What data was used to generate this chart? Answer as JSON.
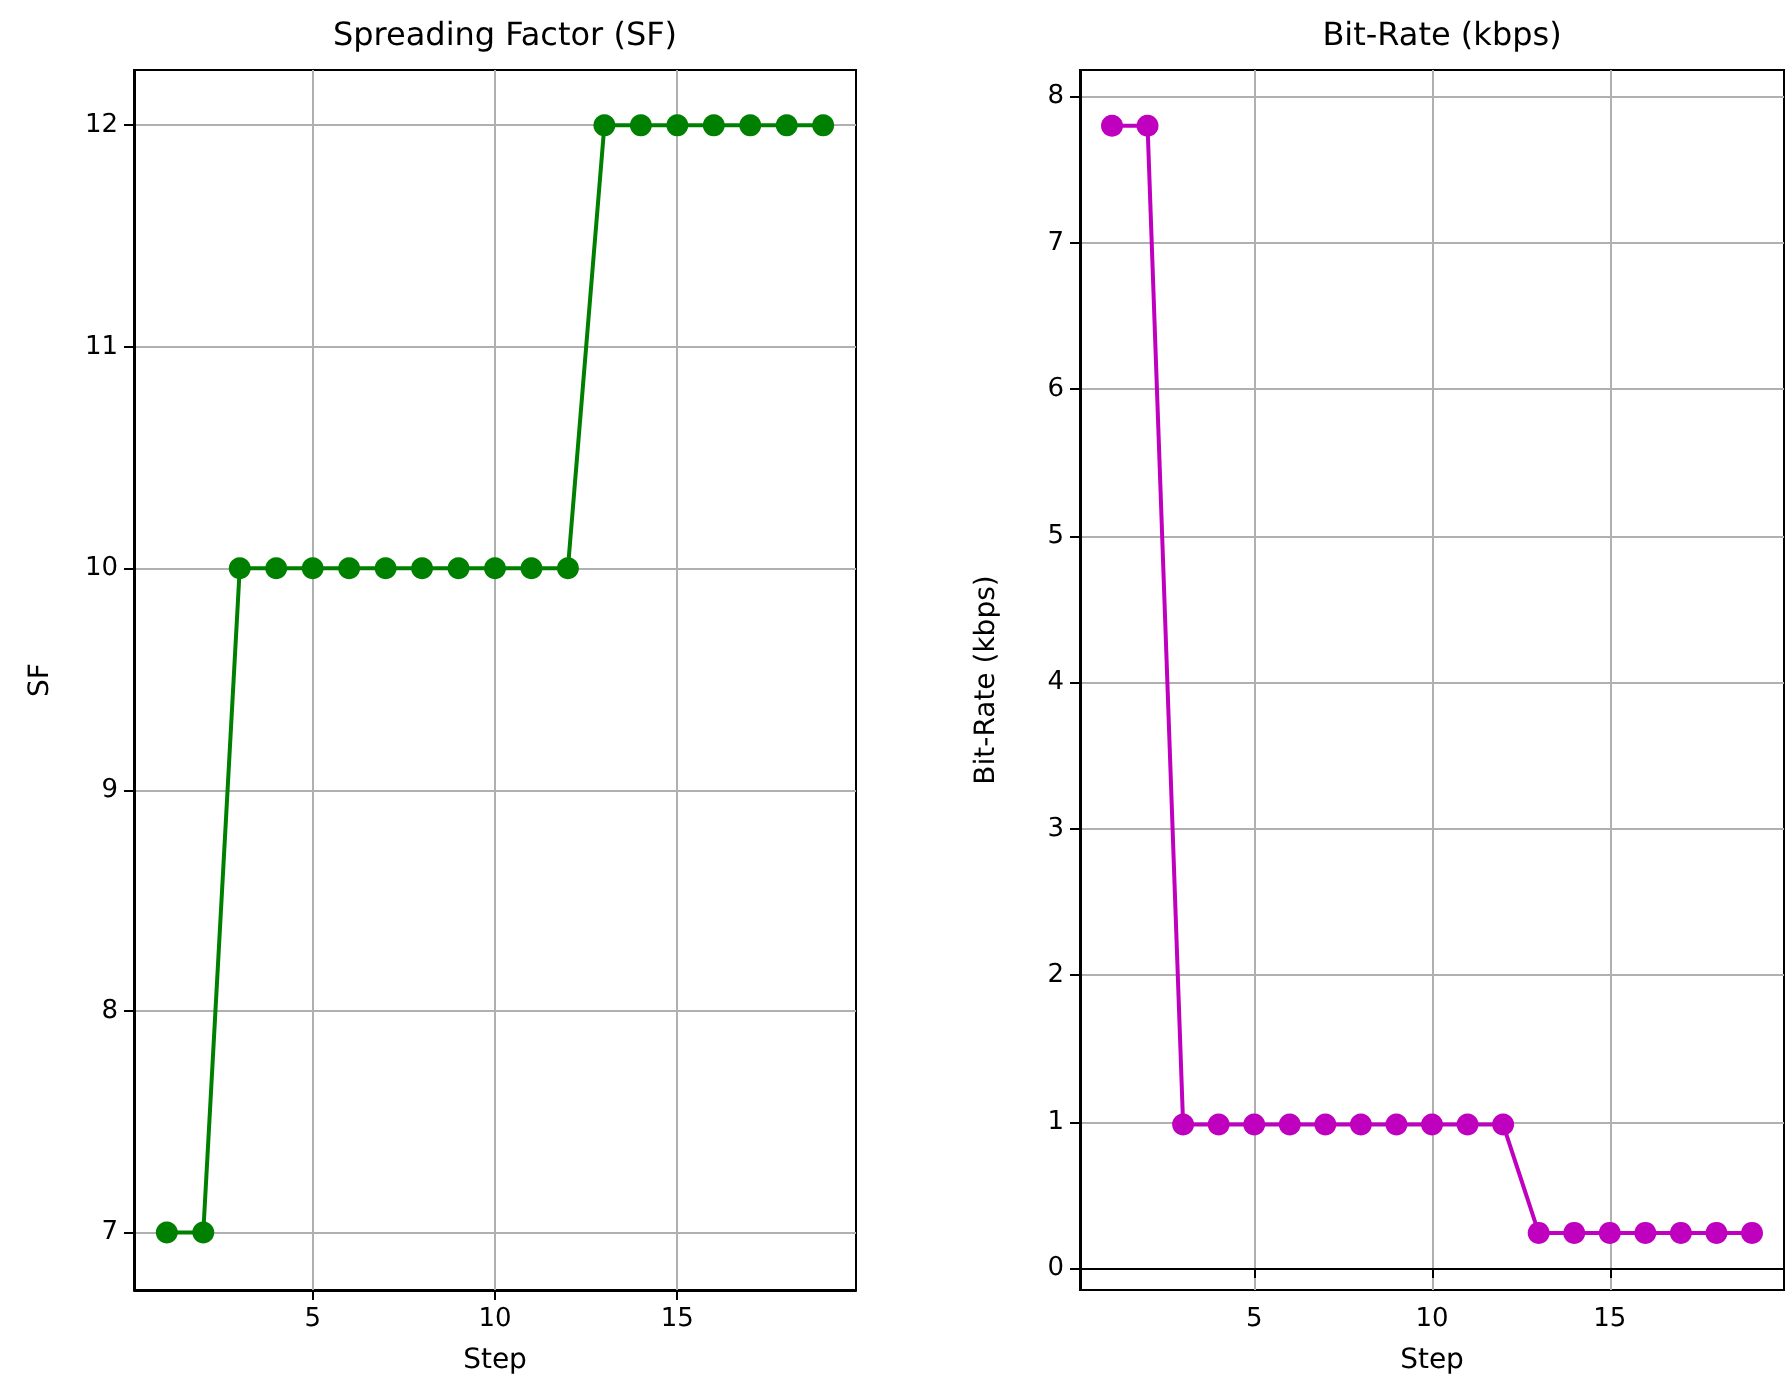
{
  "chart_data": [
    {
      "type": "line",
      "title": "Spreading Factor (SF)",
      "xlabel": "Step",
      "ylabel": "SF",
      "x": [
        1,
        2,
        3,
        4,
        5,
        6,
        7,
        8,
        9,
        10,
        11,
        12,
        13,
        14,
        15,
        16,
        17,
        18,
        19
      ],
      "series": [
        {
          "color": "#008000",
          "values": [
            7,
            7,
            10,
            10,
            10,
            10,
            10,
            10,
            10,
            10,
            10,
            10,
            12,
            12,
            12,
            12,
            12,
            12,
            12
          ]
        }
      ],
      "xlim": [
        0.1,
        19.9
      ],
      "xticks": [
        5,
        10,
        15
      ],
      "ylim": [
        6.74,
        12.25
      ],
      "yticks": [
        7,
        8,
        9,
        10,
        11,
        12
      ],
      "grid": true,
      "marker": "circle",
      "line_style": "solid"
    },
    {
      "type": "line",
      "title": "Bit-Rate (kbps)",
      "xlabel": "Step",
      "ylabel": "Bit-Rate (kbps)",
      "x": [
        1,
        2,
        3,
        4,
        5,
        6,
        7,
        8,
        9,
        10,
        11,
        12,
        13,
        14,
        15,
        16,
        17,
        18,
        19
      ],
      "series": [
        {
          "color": "#bf00bf",
          "values": [
            7.8,
            7.8,
            0.98,
            0.98,
            0.98,
            0.98,
            0.98,
            0.98,
            0.98,
            0.98,
            0.98,
            0.98,
            0.24,
            0.24,
            0.24,
            0.24,
            0.24,
            0.24,
            0.24
          ]
        }
      ],
      "xlim": [
        0.1,
        19.9
      ],
      "xticks": [
        5,
        10,
        15
      ],
      "ylim": [
        -0.15,
        8.18
      ],
      "yticks": [
        0,
        1,
        2,
        3,
        4,
        5,
        6,
        7,
        8
      ],
      "grid": true,
      "marker": "circle",
      "line_style": "solid"
    }
  ]
}
